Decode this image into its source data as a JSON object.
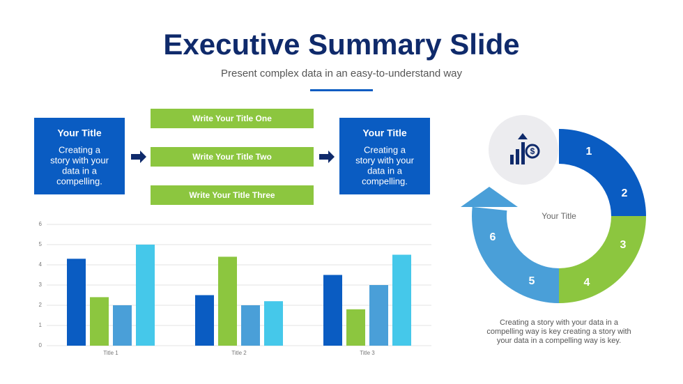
{
  "header": {
    "title": "Executive Summary Slide",
    "subtitle": "Present complex data in an easy-to-understand way"
  },
  "flow": {
    "left_box": {
      "title": "Your Title",
      "lines": [
        "Creating a",
        "story with your",
        "data in a",
        "compelling."
      ]
    },
    "steps": [
      "Write Your Title One",
      "Write Your Title Two",
      "Write Your Title Three"
    ],
    "right_box": {
      "title": "Your Title",
      "lines": [
        "Creating a",
        "story with your",
        "data in a",
        "compelling."
      ]
    }
  },
  "chart_data": {
    "type": "bar",
    "categories": [
      "Title 1",
      "Title 2",
      "Title 3"
    ],
    "series": [
      {
        "color": "#0a5cc2",
        "values": [
          4.3,
          2.5,
          3.5
        ]
      },
      {
        "color": "#8cc63f",
        "values": [
          2.4,
          4.4,
          1.8
        ]
      },
      {
        "color": "#4a9fd8",
        "values": [
          2.0,
          2.0,
          3.0
        ]
      },
      {
        "color": "#45c8ea",
        "values": [
          5.0,
          2.2,
          4.5
        ]
      }
    ],
    "ylim": [
      0,
      6
    ],
    "yticks": [
      0,
      1,
      2,
      3,
      4,
      5,
      6
    ],
    "grid": true
  },
  "cycle": {
    "center_label": "Your Title",
    "segments": [
      "1",
      "2",
      "3",
      "4",
      "5",
      "6"
    ],
    "caption": [
      "Creating a story with your data in a",
      "compelling way is key creating a story with",
      "your data in a compelling way is key."
    ]
  }
}
